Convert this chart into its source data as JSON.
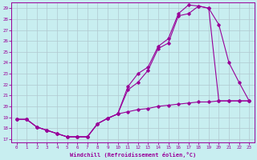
{
  "xlabel": "Windchill (Refroidissement éolien,°C)",
  "bg_color": "#c8eef0",
  "grid_color": "#b0c8d0",
  "line_color": "#990099",
  "xlim_min": -0.5,
  "xlim_max": 23.5,
  "ylim_min": 16.7,
  "ylim_max": 29.5,
  "xticks": [
    0,
    1,
    2,
    3,
    4,
    5,
    6,
    7,
    8,
    9,
    10,
    11,
    12,
    13,
    14,
    15,
    16,
    17,
    18,
    19,
    20,
    21,
    22,
    23
  ],
  "yticks": [
    17,
    18,
    19,
    20,
    21,
    22,
    23,
    24,
    25,
    26,
    27,
    28,
    29
  ],
  "curve_flat_x": [
    0,
    1,
    2,
    3,
    4,
    5,
    6,
    7,
    8,
    9,
    10,
    11,
    12,
    13,
    14,
    15,
    16,
    17,
    18,
    19,
    20,
    21,
    22,
    23
  ],
  "curve_flat_y": [
    18.8,
    18.8,
    18.1,
    17.8,
    17.5,
    17.2,
    17.2,
    17.2,
    18.4,
    18.9,
    19.3,
    19.5,
    19.7,
    19.8,
    20.0,
    20.1,
    20.2,
    20.3,
    20.4,
    20.4,
    20.5,
    20.5,
    20.5,
    20.5
  ],
  "curve_mid_x": [
    0,
    1,
    2,
    3,
    4,
    5,
    6,
    7,
    8,
    9,
    10,
    11,
    12,
    13,
    14,
    15,
    16,
    17,
    18,
    19,
    20,
    21,
    22,
    23
  ],
  "curve_mid_y": [
    18.8,
    18.8,
    18.1,
    17.8,
    17.5,
    17.2,
    17.2,
    17.2,
    18.4,
    18.9,
    19.3,
    21.5,
    22.2,
    23.3,
    25.3,
    25.8,
    28.3,
    28.5,
    29.2,
    29.0,
    27.5,
    24.0,
    22.2,
    20.5
  ],
  "curve_high_x": [
    0,
    1,
    2,
    3,
    4,
    5,
    6,
    7,
    8,
    9,
    10,
    11,
    12,
    13,
    14,
    15,
    16,
    17,
    18,
    19,
    20,
    21,
    22,
    23
  ],
  "curve_high_y": [
    18.8,
    18.8,
    18.1,
    17.8,
    17.5,
    17.2,
    17.2,
    17.2,
    18.4,
    18.9,
    19.3,
    21.8,
    23.0,
    23.6,
    25.5,
    26.2,
    28.5,
    29.3,
    29.2,
    29.0,
    20.5,
    20.5,
    20.5,
    20.5
  ]
}
